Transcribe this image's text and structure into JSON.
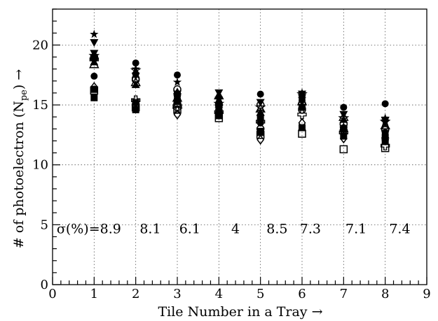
{
  "chart_data": {
    "type": "scatter",
    "title": "",
    "xlabel": "Tile Number in a Tray →",
    "ylabel": "# of photoelectron (N",
    "ylabel_sub": "pe",
    "ylabel_tail": ") →",
    "xlim": [
      0,
      9
    ],
    "ylim": [
      0,
      23
    ],
    "x_ticks": [
      0,
      1,
      2,
      3,
      4,
      5,
      6,
      7,
      8,
      9
    ],
    "y_ticks": [
      0,
      5,
      10,
      15,
      20
    ],
    "grid": true,
    "grid_style": "dotted",
    "annotation_prefix": "σ(%)=",
    "sigma_values": [
      "8.9",
      "8.1",
      "6.1",
      "4",
      "8.5",
      "7.3",
      "7.1",
      "7.4"
    ],
    "series": [
      {
        "marker": "filled-circle",
        "points": [
          [
            1,
            17.4
          ],
          [
            2,
            18.5
          ],
          [
            3,
            17.5
          ],
          [
            4,
            15.2
          ],
          [
            5,
            15.9
          ],
          [
            6,
            15.7
          ],
          [
            7,
            14.8
          ],
          [
            8,
            15.1
          ]
        ]
      },
      {
        "marker": "star",
        "points": [
          [
            1,
            20.9
          ],
          [
            2,
            18.0
          ],
          [
            3,
            16.9
          ],
          [
            4,
            14.7
          ],
          [
            5,
            14.0
          ],
          [
            6,
            15.5
          ],
          [
            7,
            13.2
          ],
          [
            8,
            13.9
          ]
        ]
      },
      {
        "marker": "filled-triangle-down",
        "points": [
          [
            1,
            20.2
          ],
          [
            2,
            17.4
          ],
          [
            3,
            15.9
          ],
          [
            4,
            16.0
          ],
          [
            5,
            15.2
          ],
          [
            6,
            15.6
          ],
          [
            7,
            14.2
          ],
          [
            8,
            13.5
          ]
        ]
      },
      {
        "marker": "open-circle",
        "points": [
          [
            1,
            19.0
          ],
          [
            2,
            17.2
          ],
          [
            3,
            16.3
          ],
          [
            4,
            15.0
          ],
          [
            5,
            15.0
          ],
          [
            6,
            14.6
          ],
          [
            7,
            13.4
          ],
          [
            8,
            12.9
          ]
        ]
      },
      {
        "marker": "filled-square",
        "points": [
          [
            1,
            15.6
          ],
          [
            2,
            15.2
          ],
          [
            3,
            15.3
          ],
          [
            4,
            14.9
          ],
          [
            5,
            13.8
          ],
          [
            6,
            14.8
          ],
          [
            7,
            13.0
          ],
          [
            8,
            12.0
          ]
        ]
      },
      {
        "marker": "open-square",
        "points": [
          [
            1,
            16.2
          ],
          [
            2,
            14.8
          ],
          [
            3,
            14.6
          ],
          [
            4,
            13.9
          ],
          [
            5,
            12.5
          ],
          [
            6,
            12.6
          ],
          [
            7,
            11.3
          ],
          [
            8,
            11.4
          ]
        ]
      },
      {
        "marker": "filled-triangle-up",
        "points": [
          [
            1,
            18.6
          ],
          [
            2,
            16.7
          ],
          [
            3,
            16.1
          ],
          [
            4,
            15.8
          ],
          [
            5,
            14.4
          ],
          [
            6,
            15.0
          ],
          [
            7,
            13.8
          ],
          [
            8,
            12.5
          ]
        ]
      },
      {
        "marker": "open-triangle-up",
        "points": [
          [
            1,
            18.4
          ],
          [
            2,
            16.9
          ],
          [
            3,
            15.6
          ],
          [
            4,
            15.8
          ],
          [
            5,
            14.7
          ],
          [
            6,
            15.3
          ],
          [
            7,
            14.0
          ],
          [
            8,
            13.3
          ]
        ]
      },
      {
        "marker": "open-diamond",
        "points": [
          [
            1,
            16.5
          ],
          [
            2,
            14.9
          ],
          [
            3,
            14.2
          ],
          [
            4,
            14.6
          ],
          [
            5,
            12.1
          ],
          [
            6,
            13.5
          ],
          [
            7,
            12.2
          ],
          [
            8,
            12.1
          ]
        ]
      },
      {
        "marker": "open-cross",
        "points": [
          [
            1,
            18.8
          ],
          [
            2,
            15.4
          ],
          [
            3,
            14.9
          ],
          [
            4,
            14.4
          ],
          [
            5,
            13.6
          ],
          [
            6,
            14.2
          ],
          [
            7,
            12.7
          ],
          [
            8,
            11.6
          ]
        ]
      },
      {
        "marker": "filled-triangle-down",
        "points": [
          [
            1,
            19.3
          ],
          [
            2,
            15.0
          ],
          [
            3,
            15.7
          ],
          [
            4,
            15.4
          ],
          [
            5,
            12.8
          ],
          [
            6,
            15.9
          ],
          [
            7,
            12.9
          ],
          [
            8,
            13.7
          ]
        ]
      },
      {
        "marker": "open-star",
        "points": [
          [
            1,
            19.1
          ],
          [
            2,
            17.9
          ],
          [
            3,
            14.6
          ],
          [
            4,
            15.1
          ],
          [
            5,
            14.8
          ],
          [
            6,
            15.9
          ],
          [
            7,
            13.9
          ],
          [
            8,
            13.6
          ]
        ]
      },
      {
        "marker": "filled-square",
        "points": [
          [
            1,
            16.3
          ],
          [
            2,
            14.6
          ],
          [
            3,
            15.9
          ],
          [
            4,
            14.1
          ],
          [
            5,
            12.7
          ],
          [
            6,
            13.1
          ],
          [
            7,
            12.4
          ],
          [
            8,
            12.3
          ]
        ]
      },
      {
        "marker": "open-circle",
        "points": [
          [
            1,
            18.9
          ],
          [
            2,
            17.1
          ],
          [
            3,
            15.1
          ],
          [
            4,
            14.3
          ],
          [
            5,
            13.0
          ],
          [
            6,
            15.1
          ],
          [
            7,
            12.9
          ],
          [
            8,
            13.0
          ]
        ]
      },
      {
        "marker": "filled-circle",
        "points": [
          [
            1,
            19.0
          ],
          [
            2,
            17.6
          ],
          [
            3,
            15.4
          ],
          [
            4,
            14.5
          ],
          [
            5,
            13.5
          ],
          [
            6,
            15.4
          ],
          [
            7,
            13.1
          ],
          [
            8,
            12.7
          ]
        ]
      }
    ]
  }
}
